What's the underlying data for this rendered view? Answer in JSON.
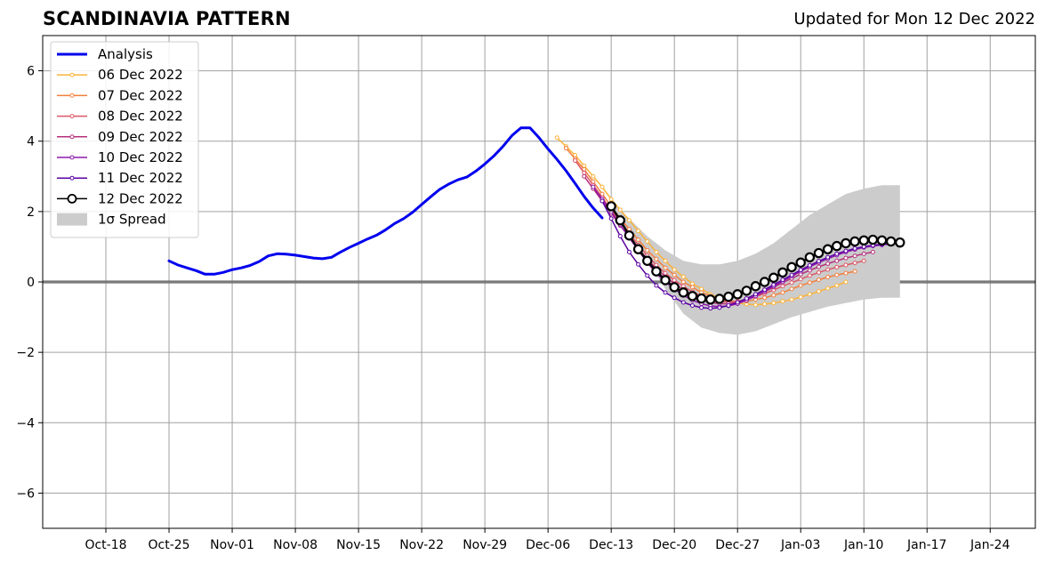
{
  "header": {
    "title": "SCANDINAVIA PATTERN",
    "subtitle": "Updated for Mon 12 Dec 2022"
  },
  "chart_data": {
    "type": "line",
    "title": "SCANDINAVIA PATTERN",
    "subtitle": "Updated for Mon 12 Dec 2022",
    "xlabel": "",
    "ylabel": "",
    "x_axis": {
      "type": "date",
      "range": [
        "2022-10-11",
        "2023-01-29"
      ]
    },
    "ylim": [
      -7,
      7
    ],
    "yticks": [
      -6,
      -4,
      -2,
      0,
      2,
      4,
      6
    ],
    "ytick_labels": [
      "−6",
      "−4",
      "−2",
      "0",
      "2",
      "4",
      "6"
    ],
    "xticks": [
      "2022-10-18",
      "2022-10-25",
      "2022-11-01",
      "2022-11-08",
      "2022-11-15",
      "2022-11-22",
      "2022-11-29",
      "2022-12-06",
      "2022-12-13",
      "2022-12-20",
      "2022-12-27",
      "2023-01-03",
      "2023-01-10",
      "2023-01-17",
      "2023-01-24"
    ],
    "xtick_labels": [
      "Oct-18",
      "Oct-25",
      "Nov-01",
      "Nov-08",
      "Nov-15",
      "Nov-22",
      "Nov-29",
      "Dec-06",
      "Dec-13",
      "Dec-20",
      "Dec-27",
      "Jan-03",
      "Jan-10",
      "Jan-17",
      "Jan-24"
    ],
    "grid": true,
    "legend": {
      "placement": "top-left"
    },
    "spread_label": "1σ Spread",
    "spread": {
      "x": [
        "2022-12-13",
        "2022-12-15",
        "2022-12-17",
        "2022-12-19",
        "2022-12-21",
        "2022-12-23",
        "2022-12-25",
        "2022-12-27",
        "2022-12-29",
        "2022-12-31",
        "2023-01-02",
        "2023-01-04",
        "2023-01-06",
        "2023-01-08",
        "2023-01-10",
        "2023-01-12",
        "2023-01-14"
      ],
      "upper": [
        2.3,
        1.8,
        1.3,
        0.9,
        0.6,
        0.5,
        0.5,
        0.6,
        0.8,
        1.1,
        1.5,
        1.9,
        2.2,
        2.5,
        2.65,
        2.75,
        2.75
      ],
      "lower": [
        2.0,
        1.4,
        0.6,
        -0.2,
        -0.9,
        -1.3,
        -1.45,
        -1.5,
        -1.4,
        -1.2,
        -1.0,
        -0.85,
        -0.7,
        -0.6,
        -0.5,
        -0.45,
        -0.45
      ]
    },
    "series": [
      {
        "name": "Analysis",
        "color": "#0000ee",
        "style": "thick-line",
        "x": [
          "2022-10-25",
          "2022-10-26",
          "2022-10-27",
          "2022-10-28",
          "2022-10-29",
          "2022-10-30",
          "2022-10-31",
          "2022-11-01",
          "2022-11-02",
          "2022-11-03",
          "2022-11-04",
          "2022-11-05",
          "2022-11-06",
          "2022-11-07",
          "2022-11-08",
          "2022-11-09",
          "2022-11-10",
          "2022-11-11",
          "2022-11-12",
          "2022-11-13",
          "2022-11-14",
          "2022-11-15",
          "2022-11-16",
          "2022-11-17",
          "2022-11-18",
          "2022-11-19",
          "2022-11-20",
          "2022-11-21",
          "2022-11-22",
          "2022-11-23",
          "2022-11-24",
          "2022-11-25",
          "2022-11-26",
          "2022-11-27",
          "2022-11-28",
          "2022-11-29",
          "2022-11-30",
          "2022-12-01",
          "2022-12-02",
          "2022-12-03",
          "2022-12-04",
          "2022-12-05",
          "2022-12-06",
          "2022-12-07",
          "2022-12-08",
          "2022-12-09",
          "2022-12-10",
          "2022-12-11",
          "2022-12-12"
        ],
        "values": [
          0.6,
          0.48,
          0.4,
          0.32,
          0.22,
          0.22,
          0.27,
          0.35,
          0.4,
          0.47,
          0.58,
          0.74,
          0.8,
          0.79,
          0.76,
          0.72,
          0.68,
          0.66,
          0.7,
          0.85,
          0.98,
          1.1,
          1.22,
          1.33,
          1.48,
          1.66,
          1.8,
          1.98,
          2.2,
          2.42,
          2.63,
          2.78,
          2.9,
          2.98,
          3.15,
          3.35,
          3.58,
          3.85,
          4.16,
          4.38,
          4.38,
          4.1,
          3.78,
          3.48,
          3.16,
          2.8,
          2.43,
          2.1,
          1.82
        ]
      },
      {
        "name": "06 Dec 2022",
        "color": "#fbb33a",
        "style": "small-dots",
        "x": [
          "2022-12-07",
          "2022-12-08",
          "2022-12-09",
          "2022-12-10",
          "2022-12-11",
          "2022-12-12",
          "2022-12-13",
          "2022-12-14",
          "2022-12-15",
          "2022-12-16",
          "2022-12-17",
          "2022-12-18",
          "2022-12-19",
          "2022-12-20",
          "2022-12-21",
          "2022-12-22",
          "2022-12-23",
          "2022-12-24",
          "2022-12-25",
          "2022-12-26",
          "2022-12-27",
          "2022-12-28",
          "2022-12-29",
          "2022-12-30",
          "2022-12-31",
          "2023-01-01",
          "2023-01-02",
          "2023-01-03",
          "2023-01-04",
          "2023-01-05",
          "2023-01-06",
          "2023-01-07",
          "2023-01-08"
        ],
        "values": [
          4.1,
          3.85,
          3.6,
          3.3,
          3.0,
          2.7,
          2.35,
          2.05,
          1.75,
          1.45,
          1.15,
          0.85,
          0.6,
          0.35,
          0.15,
          -0.05,
          -0.2,
          -0.35,
          -0.45,
          -0.55,
          -0.6,
          -0.63,
          -0.65,
          -0.63,
          -0.6,
          -0.55,
          -0.5,
          -0.43,
          -0.35,
          -0.27,
          -0.18,
          -0.1,
          0.0
        ]
      },
      {
        "name": "07 Dec 2022",
        "color": "#f27f3e",
        "style": "small-dots",
        "x": [
          "2022-12-08",
          "2022-12-09",
          "2022-12-10",
          "2022-12-11",
          "2022-12-12",
          "2022-12-13",
          "2022-12-14",
          "2022-12-15",
          "2022-12-16",
          "2022-12-17",
          "2022-12-18",
          "2022-12-19",
          "2022-12-20",
          "2022-12-21",
          "2022-12-22",
          "2022-12-23",
          "2022-12-24",
          "2022-12-25",
          "2022-12-26",
          "2022-12-27",
          "2022-12-28",
          "2022-12-29",
          "2022-12-30",
          "2022-12-31",
          "2023-01-01",
          "2023-01-02",
          "2023-01-03",
          "2023-01-04",
          "2023-01-05",
          "2023-01-06",
          "2023-01-07",
          "2023-01-08",
          "2023-01-09"
        ],
        "values": [
          3.8,
          3.5,
          3.2,
          2.85,
          2.5,
          2.15,
          1.8,
          1.5,
          1.2,
          0.9,
          0.65,
          0.4,
          0.2,
          0.0,
          -0.15,
          -0.3,
          -0.4,
          -0.5,
          -0.55,
          -0.55,
          -0.55,
          -0.5,
          -0.45,
          -0.38,
          -0.3,
          -0.2,
          -0.1,
          -0.02,
          0.06,
          0.14,
          0.2,
          0.25,
          0.3
        ]
      },
      {
        "name": "08 Dec 2022",
        "color": "#dd5766",
        "style": "small-dots",
        "x": [
          "2022-12-09",
          "2022-12-10",
          "2022-12-11",
          "2022-12-12",
          "2022-12-13",
          "2022-12-14",
          "2022-12-15",
          "2022-12-16",
          "2022-12-17",
          "2022-12-18",
          "2022-12-19",
          "2022-12-20",
          "2022-12-21",
          "2022-12-22",
          "2022-12-23",
          "2022-12-24",
          "2022-12-25",
          "2022-12-26",
          "2022-12-27",
          "2022-12-28",
          "2022-12-29",
          "2022-12-30",
          "2022-12-31",
          "2023-01-01",
          "2023-01-02",
          "2023-01-03",
          "2023-01-04",
          "2023-01-05",
          "2023-01-06",
          "2023-01-07",
          "2023-01-08",
          "2023-01-09",
          "2023-01-10"
        ],
        "values": [
          3.45,
          3.1,
          2.75,
          2.4,
          2.05,
          1.7,
          1.38,
          1.05,
          0.75,
          0.48,
          0.25,
          0.05,
          -0.12,
          -0.28,
          -0.4,
          -0.5,
          -0.55,
          -0.57,
          -0.55,
          -0.5,
          -0.42,
          -0.33,
          -0.23,
          -0.12,
          -0.02,
          0.08,
          0.18,
          0.27,
          0.35,
          0.42,
          0.48,
          0.54,
          0.6
        ]
      },
      {
        "name": "09 Dec 2022",
        "color": "#b4307b",
        "style": "small-dots",
        "x": [
          "2022-12-10",
          "2022-12-11",
          "2022-12-12",
          "2022-12-13",
          "2022-12-14",
          "2022-12-15",
          "2022-12-16",
          "2022-12-17",
          "2022-12-18",
          "2022-12-19",
          "2022-12-20",
          "2022-12-21",
          "2022-12-22",
          "2022-12-23",
          "2022-12-24",
          "2022-12-25",
          "2022-12-26",
          "2022-12-27",
          "2022-12-28",
          "2022-12-29",
          "2022-12-30",
          "2022-12-31",
          "2023-01-01",
          "2023-01-02",
          "2023-01-03",
          "2023-01-04",
          "2023-01-05",
          "2023-01-06",
          "2023-01-07",
          "2023-01-08",
          "2023-01-09",
          "2023-01-10",
          "2023-01-11"
        ],
        "values": [
          3.0,
          2.65,
          2.3,
          1.95,
          1.6,
          1.28,
          0.95,
          0.65,
          0.38,
          0.15,
          -0.05,
          -0.22,
          -0.37,
          -0.5,
          -0.58,
          -0.62,
          -0.62,
          -0.58,
          -0.5,
          -0.4,
          -0.28,
          -0.15,
          -0.02,
          0.1,
          0.22,
          0.33,
          0.43,
          0.52,
          0.6,
          0.68,
          0.74,
          0.8,
          0.85
        ]
      },
      {
        "name": "10 Dec 2022",
        "color": "#8d18aa",
        "style": "small-dots",
        "x": [
          "2022-12-11",
          "2022-12-12",
          "2022-12-13",
          "2022-12-14",
          "2022-12-15",
          "2022-12-16",
          "2022-12-17",
          "2022-12-18",
          "2022-12-19",
          "2022-12-20",
          "2022-12-21",
          "2022-12-22",
          "2022-12-23",
          "2022-12-24",
          "2022-12-25",
          "2022-12-26",
          "2022-12-27",
          "2022-12-28",
          "2022-12-29",
          "2022-12-30",
          "2022-12-31",
          "2023-01-01",
          "2023-01-02",
          "2023-01-03",
          "2023-01-04",
          "2023-01-05",
          "2023-01-06",
          "2023-01-07",
          "2023-01-08",
          "2023-01-09",
          "2023-01-10",
          "2023-01-11",
          "2023-01-12",
          "2023-01-13"
        ],
        "values": [
          2.7,
          2.35,
          2.0,
          1.62,
          1.25,
          0.9,
          0.55,
          0.25,
          0.0,
          -0.2,
          -0.38,
          -0.52,
          -0.62,
          -0.68,
          -0.7,
          -0.68,
          -0.62,
          -0.52,
          -0.4,
          -0.26,
          -0.12,
          0.02,
          0.16,
          0.3,
          0.43,
          0.55,
          0.66,
          0.76,
          0.85,
          0.92,
          0.98,
          1.02,
          1.05,
          1.08
        ]
      },
      {
        "name": "11 Dec 2022",
        "color": "#5b02a3",
        "style": "small-dots",
        "x": [
          "2022-12-12",
          "2022-12-13",
          "2022-12-14",
          "2022-12-15",
          "2022-12-16",
          "2022-12-17",
          "2022-12-18",
          "2022-12-19",
          "2022-12-20",
          "2022-12-21",
          "2022-12-22",
          "2022-12-23",
          "2022-12-24",
          "2022-12-25",
          "2022-12-26",
          "2022-12-27",
          "2022-12-28",
          "2022-12-29",
          "2022-12-30",
          "2022-12-31",
          "2023-01-01",
          "2023-01-02",
          "2023-01-03",
          "2023-01-04",
          "2023-01-05",
          "2023-01-06",
          "2023-01-07",
          "2023-01-08",
          "2023-01-09",
          "2023-01-10",
          "2023-01-11",
          "2023-01-12",
          "2023-01-13",
          "2023-01-14"
        ],
        "values": [
          2.3,
          1.8,
          1.3,
          0.85,
          0.5,
          0.18,
          -0.1,
          -0.3,
          -0.45,
          -0.58,
          -0.67,
          -0.73,
          -0.75,
          -0.73,
          -0.67,
          -0.58,
          -0.47,
          -0.35,
          -0.22,
          -0.08,
          0.06,
          0.2,
          0.34,
          0.47,
          0.59,
          0.7,
          0.8,
          0.88,
          0.95,
          1.0,
          1.04,
          1.07,
          1.1,
          1.12
        ]
      },
      {
        "name": "12 Dec 2022",
        "color": "#000000",
        "style": "big-circles",
        "x": [
          "2022-12-13",
          "2022-12-14",
          "2022-12-15",
          "2022-12-16",
          "2022-12-17",
          "2022-12-18",
          "2022-12-19",
          "2022-12-20",
          "2022-12-21",
          "2022-12-22",
          "2022-12-23",
          "2022-12-24",
          "2022-12-25",
          "2022-12-26",
          "2022-12-27",
          "2022-12-28",
          "2022-12-29",
          "2022-12-30",
          "2022-12-31",
          "2023-01-01",
          "2023-01-02",
          "2023-01-03",
          "2023-01-04",
          "2023-01-05",
          "2023-01-06",
          "2023-01-07",
          "2023-01-08",
          "2023-01-09",
          "2023-01-10",
          "2023-01-11",
          "2023-01-12",
          "2023-01-13",
          "2023-01-14"
        ],
        "values": [
          2.15,
          1.75,
          1.32,
          0.93,
          0.6,
          0.3,
          0.05,
          -0.15,
          -0.3,
          -0.4,
          -0.47,
          -0.5,
          -0.48,
          -0.42,
          -0.35,
          -0.25,
          -0.12,
          0.0,
          0.12,
          0.27,
          0.42,
          0.55,
          0.7,
          0.82,
          0.93,
          1.02,
          1.1,
          1.15,
          1.18,
          1.2,
          1.18,
          1.15,
          1.12
        ]
      }
    ]
  }
}
